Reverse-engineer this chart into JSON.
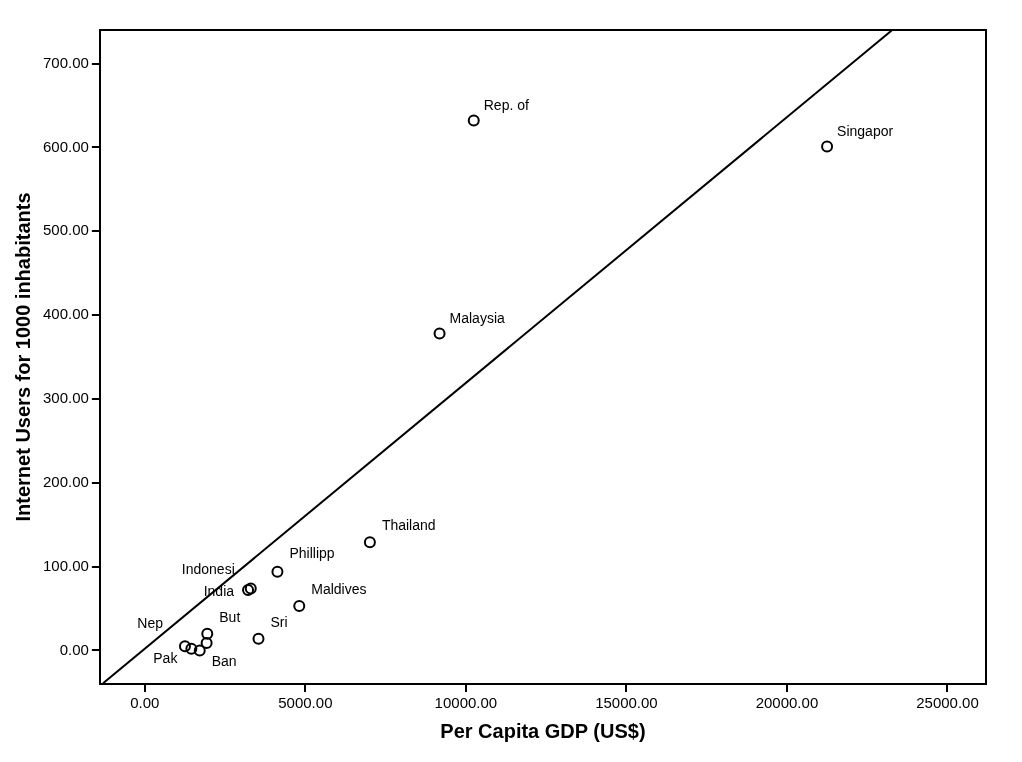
{
  "chart_data": {
    "type": "scatter",
    "xlabel": "Per Capita GDP (US$)",
    "ylabel": "Internet Users for 1000 inhabitants",
    "xlim": [
      -1400,
      26200
    ],
    "ylim": [
      -40,
      740
    ],
    "xticks": [
      {
        "value": 0,
        "label": "0.00"
      },
      {
        "value": 5000,
        "label": "5000.00"
      },
      {
        "value": 10000,
        "label": "10000.00"
      },
      {
        "value": 15000,
        "label": "15000.00"
      },
      {
        "value": 20000,
        "label": "20000.00"
      },
      {
        "value": 25000,
        "label": "25000.00"
      }
    ],
    "yticks": [
      {
        "value": 0,
        "label": "0.00"
      },
      {
        "value": 100,
        "label": "100.00"
      },
      {
        "value": 200,
        "label": "200.00"
      },
      {
        "value": 300,
        "label": "300.00"
      },
      {
        "value": 400,
        "label": "400.00"
      },
      {
        "value": 500,
        "label": "500.00"
      },
      {
        "value": 600,
        "label": "600.00"
      },
      {
        "value": 700,
        "label": "700.00"
      }
    ],
    "grid": false,
    "legend": false,
    "series": [
      {
        "color": "#000000",
        "marker": "circle",
        "x": [
          1250,
          1450,
          1710,
          1925,
          1945,
          3540,
          3215,
          3300,
          4130,
          4810,
          7010,
          9180,
          10245,
          21250
        ],
        "values": [
          5,
          2,
          0,
          9,
          20,
          14,
          72,
          74,
          94,
          53,
          129,
          378,
          632,
          601
        ]
      },
      {
        "type": "line",
        "color": "#000000",
        "marker": "none",
        "line_style": "solid",
        "x": [
          -1300,
          23280
        ],
        "values": [
          -39,
          740
        ]
      }
    ],
    "annotations": [
      {
        "text": "Nep",
        "x": 1250,
        "y": 5
      },
      {
        "text": "Pak",
        "x": 1450,
        "y": 2
      },
      {
        "text": "Ban",
        "x": 1710,
        "y": 0
      },
      {
        "text": "But",
        "x": 1945,
        "y": 20
      },
      {
        "text": "Sri",
        "x": 3540,
        "y": 14
      },
      {
        "text": "India",
        "x": 3215,
        "y": 72
      },
      {
        "text": "Indonesi",
        "x": 3300,
        "y": 74
      },
      {
        "text": "Phillipp",
        "x": 4130,
        "y": 94
      },
      {
        "text": "Maldives",
        "x": 4810,
        "y": 53
      },
      {
        "text": "Thailand",
        "x": 7010,
        "y": 129
      },
      {
        "text": "Malaysia",
        "x": 9180,
        "y": 378
      },
      {
        "text": "Rep. of",
        "x": 10245,
        "y": 632
      },
      {
        "text": "Singapor",
        "x": 21250,
        "y": 601
      }
    ]
  }
}
